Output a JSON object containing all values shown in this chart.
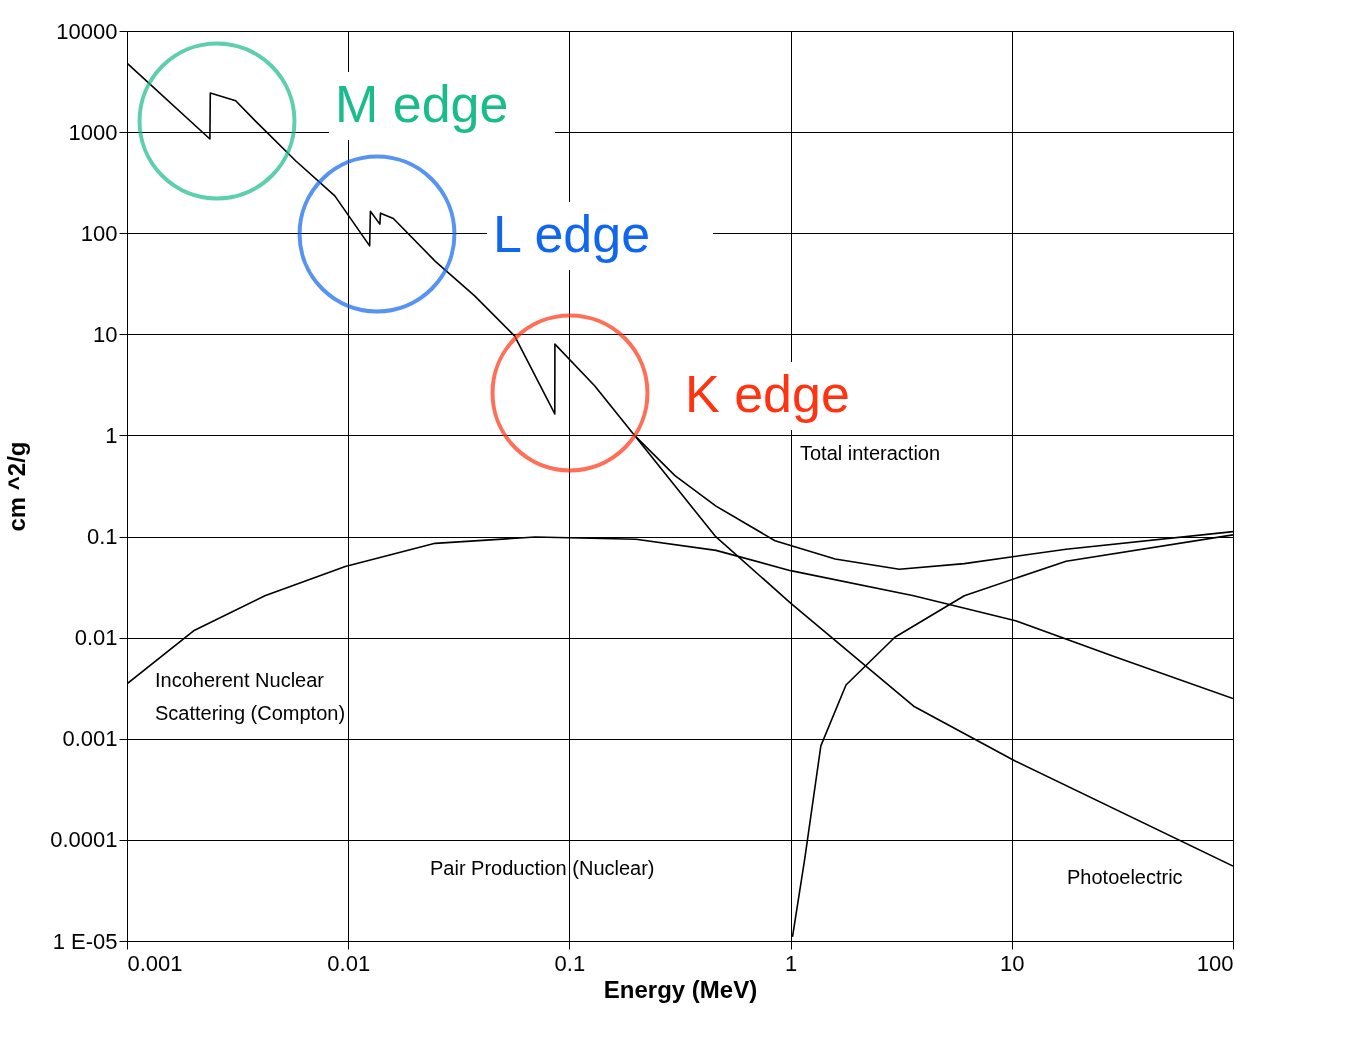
{
  "chart_data": {
    "type": "line",
    "xlabel": "Energy (MeV)",
    "ylabel": "cm ^2/g",
    "log": "xy",
    "grid": true,
    "legend": false,
    "xlim": [
      0.001,
      100
    ],
    "ylim": [
      1e-05,
      10000
    ],
    "xticks": [
      {
        "value": 0.001,
        "label": "0.001"
      },
      {
        "value": 0.01,
        "label": "0.01"
      },
      {
        "value": 0.1,
        "label": "0.1"
      },
      1,
      10,
      100
    ],
    "yticks": [
      {
        "value": 1e-05,
        "label": "1 E-05"
      },
      {
        "value": 0.0001,
        "label": "0.0001"
      },
      {
        "value": 0.001,
        "label": "0.001"
      },
      {
        "value": 0.01,
        "label": "0.01"
      },
      {
        "value": 0.1,
        "label": "0.1"
      },
      1,
      10,
      100,
      1000,
      10000
    ],
    "series": [
      {
        "color": "#000000",
        "x": [
          0.001,
          0.00237,
          0.00238,
          0.0031,
          0.0038,
          0.0058,
          0.0087,
          0.0125,
          0.0126,
          0.0139,
          0.014,
          0.016,
          0.0247,
          0.0373,
          0.0566,
          0.0859,
          0.086,
          0.13,
          0.198,
          0.3,
          0.46,
          0.85,
          1.59,
          3.1,
          6.1,
          17.6,
          100
        ],
        "values": [
          4820,
          855,
          2440,
          2040,
          1290,
          518,
          234,
          75,
          165,
          123,
          158,
          140,
          53,
          24,
          9.6,
          1.63,
          8.0,
          3.1,
          0.99,
          0.4,
          0.2,
          0.091,
          0.06,
          0.0475,
          0.054,
          0.075,
          0.112
        ]
      },
      {
        "color": "#000000",
        "x": [
          0.198,
          0.456,
          1,
          3.6,
          10.4,
          100
        ],
        "values": [
          0.99,
          0.101,
          0.022,
          0.0021,
          0.0006,
          5.5e-05
        ]
      },
      {
        "color": "#000000",
        "x": [
          0.001,
          0.002,
          0.0042,
          0.0097,
          0.0247,
          0.07,
          0.2,
          0.46,
          1,
          3.6,
          10.4,
          29,
          100
        ],
        "values": [
          0.0035,
          0.0117,
          0.026,
          0.0506,
          0.0857,
          0.099,
          0.094,
          0.073,
          0.046,
          0.026,
          0.0147,
          0.0065,
          0.0025
        ]
      },
      {
        "color": "#000000",
        "x": [
          1.02,
          1.16,
          1.37,
          1.78,
          2.96,
          6.1,
          17.6,
          100
        ],
        "values": [
          1.1e-05,
          6.6e-05,
          0.00085,
          0.0034,
          0.0101,
          0.026,
          0.057,
          0.104
        ]
      }
    ],
    "annotations": [
      "M edge",
      "L edge",
      "K edge",
      "Total interaction",
      "Incoherent Nuclear",
      "Scattering (Compton)",
      "Pair Production (Nuclear)",
      "Photoelectric"
    ]
  }
}
